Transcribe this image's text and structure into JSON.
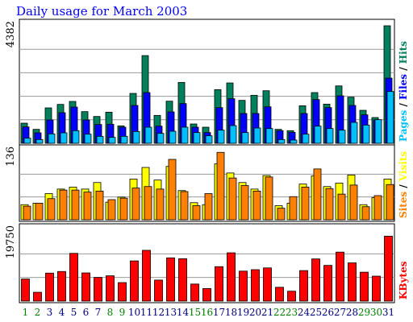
{
  "chart_data": [
    {
      "type": "bar",
      "title": "Daily usage for March 2003",
      "categories": [
        "1",
        "2",
        "3",
        "4",
        "5",
        "6",
        "7",
        "8",
        "9",
        "10",
        "11",
        "12",
        "13",
        "14",
        "15",
        "16",
        "17",
        "18",
        "19",
        "20",
        "21",
        "22",
        "23",
        "24",
        "25",
        "26",
        "27",
        "28",
        "29",
        "30",
        "31"
      ],
      "weekend_days": [
        "1",
        "2",
        "8",
        "9",
        "15",
        "16",
        "22",
        "23",
        "29",
        "30"
      ],
      "ylim": [
        0,
        4382
      ],
      "ymax_label": "4382",
      "legend": [
        "Hits",
        "Files",
        "Pages"
      ],
      "legend_separator": "/",
      "series": [
        {
          "name": "Hits",
          "color": "#00805c",
          "values": [
            750,
            520,
            1320,
            1450,
            1560,
            1180,
            1000,
            1160,
            650,
            1860,
            3270,
            1040,
            1570,
            2270,
            720,
            600,
            2000,
            2250,
            1600,
            1790,
            1960,
            520,
            470,
            1400,
            1890,
            1460,
            2140,
            1720,
            1230,
            960,
            4382
          ]
        },
        {
          "name": "Files",
          "color": "#0000ff",
          "values": [
            610,
            390,
            870,
            1140,
            1350,
            870,
            700,
            710,
            600,
            1410,
            1890,
            640,
            1170,
            1480,
            600,
            400,
            1330,
            1660,
            1110,
            1110,
            1360,
            470,
            410,
            1110,
            1630,
            1330,
            1770,
            1410,
            1060,
            870,
            2430
          ]
        },
        {
          "name": "Pages",
          "color": "#00bfff",
          "values": [
            190,
            140,
            350,
            390,
            470,
            340,
            260,
            220,
            260,
            440,
            600,
            370,
            450,
            600,
            400,
            280,
            490,
            660,
            400,
            570,
            550,
            140,
            120,
            340,
            640,
            550,
            490,
            780,
            680,
            880,
            1930
          ]
        }
      ]
    },
    {
      "type": "bar",
      "categories": [
        "1",
        "2",
        "3",
        "4",
        "5",
        "6",
        "7",
        "8",
        "9",
        "10",
        "11",
        "12",
        "13",
        "14",
        "15",
        "16",
        "17",
        "18",
        "19",
        "20",
        "21",
        "22",
        "23",
        "24",
        "25",
        "26",
        "27",
        "28",
        "29",
        "30",
        "31"
      ],
      "weekend_days": [
        "1",
        "2",
        "8",
        "9",
        "15",
        "16",
        "22",
        "23",
        "29",
        "30"
      ],
      "ylim": [
        0,
        136
      ],
      "ymax_label": "136",
      "legend": [
        "Visits",
        "Sites"
      ],
      "legend_separator": "/",
      "series": [
        {
          "name": "Visits",
          "color": "#ffff00",
          "values": [
            30,
            33,
            52,
            61,
            65,
            61,
            74,
            35,
            45,
            81,
            104,
            79,
            106,
            58,
            34,
            30,
            111,
            93,
            74,
            61,
            88,
            28,
            33,
            71,
            87,
            66,
            73,
            89,
            30,
            44,
            81
          ]
        },
        {
          "name": "Sites",
          "color": "#ff8000",
          "values": [
            27,
            33,
            42,
            59,
            59,
            55,
            57,
            40,
            43,
            63,
            66,
            61,
            120,
            56,
            28,
            52,
            134,
            83,
            68,
            57,
            85,
            23,
            46,
            65,
            101,
            62,
            51,
            69,
            26,
            48,
            70
          ]
        }
      ]
    },
    {
      "type": "bar",
      "categories": [
        "1",
        "2",
        "3",
        "4",
        "5",
        "6",
        "7",
        "8",
        "9",
        "10",
        "11",
        "12",
        "13",
        "14",
        "15",
        "16",
        "17",
        "18",
        "19",
        "20",
        "21",
        "22",
        "23",
        "24",
        "25",
        "26",
        "27",
        "28",
        "29",
        "30",
        "31"
      ],
      "weekend_days": [
        "1",
        "2",
        "8",
        "9",
        "15",
        "16",
        "22",
        "23",
        "29",
        "30"
      ],
      "ylim": [
        0,
        19750
      ],
      "ymax_label": "19750",
      "legend": [
        "KBytes"
      ],
      "series": [
        {
          "name": "KBytes",
          "color": "#ff0000",
          "values": [
            6150,
            2450,
            7800,
            8250,
            13300,
            7850,
            6600,
            7050,
            5150,
            11200,
            14150,
            5850,
            12050,
            11800,
            4750,
            3500,
            9600,
            13450,
            8350,
            8750,
            9250,
            3850,
            2750,
            8500,
            11750,
            9950,
            13650,
            10650,
            8050,
            6950,
            18100
          ]
        }
      ]
    }
  ],
  "colors": {
    "weekday_label": "#000080",
    "weekend_label": "#008000",
    "frame": "#000000",
    "gridline": "#999999"
  }
}
